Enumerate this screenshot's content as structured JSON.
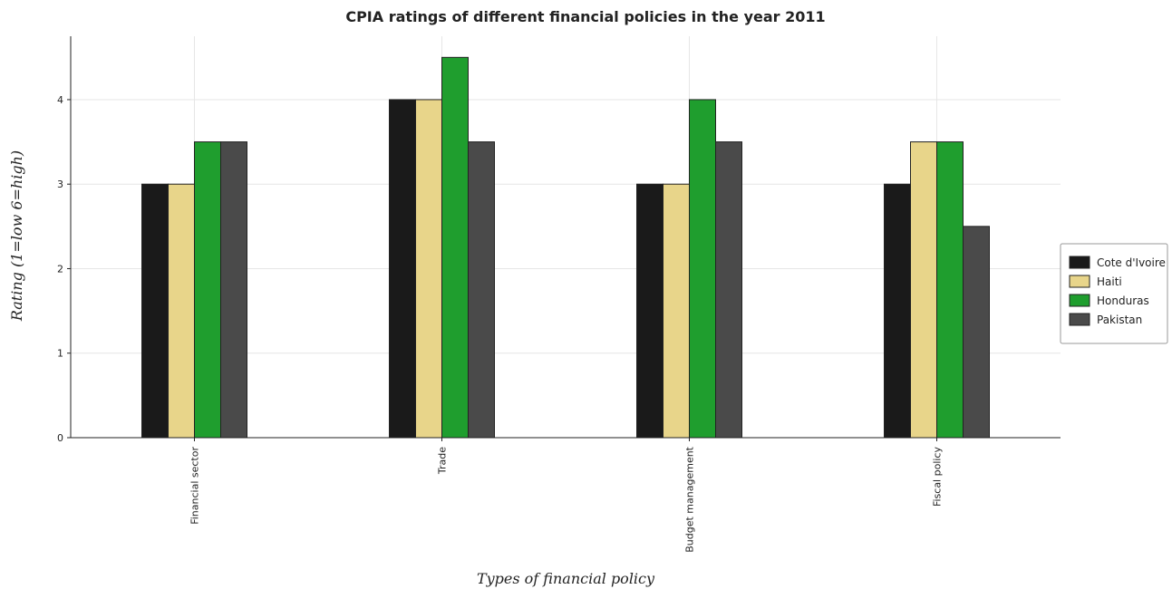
{
  "chart_data": {
    "type": "bar",
    "title": "CPIA ratings of different financial policies in the year 2011",
    "xlabel": "Types of financial policy",
    "ylabel": "Rating (1=low 6=high)",
    "ylim": [
      0,
      4.75
    ],
    "yticks": [
      0,
      1,
      2,
      3,
      4
    ],
    "grid": true,
    "legend_position": "right",
    "categories": [
      "Financial sector",
      "Trade",
      "Budget management",
      "Fiscal policy"
    ],
    "series": [
      {
        "name": "Cote d'Ivoire",
        "color": "#1a1a1a",
        "values": [
          3,
          4,
          3,
          3
        ]
      },
      {
        "name": "Haiti",
        "color": "#e8d58a",
        "values": [
          3,
          4,
          3,
          3.5
        ]
      },
      {
        "name": "Honduras",
        "color": "#1f9e2e",
        "values": [
          3.5,
          4.5,
          4,
          3.5
        ]
      },
      {
        "name": "Pakistan",
        "color": "#4a4a4a",
        "values": [
          3.5,
          3.5,
          3.5,
          2.5
        ]
      }
    ]
  }
}
